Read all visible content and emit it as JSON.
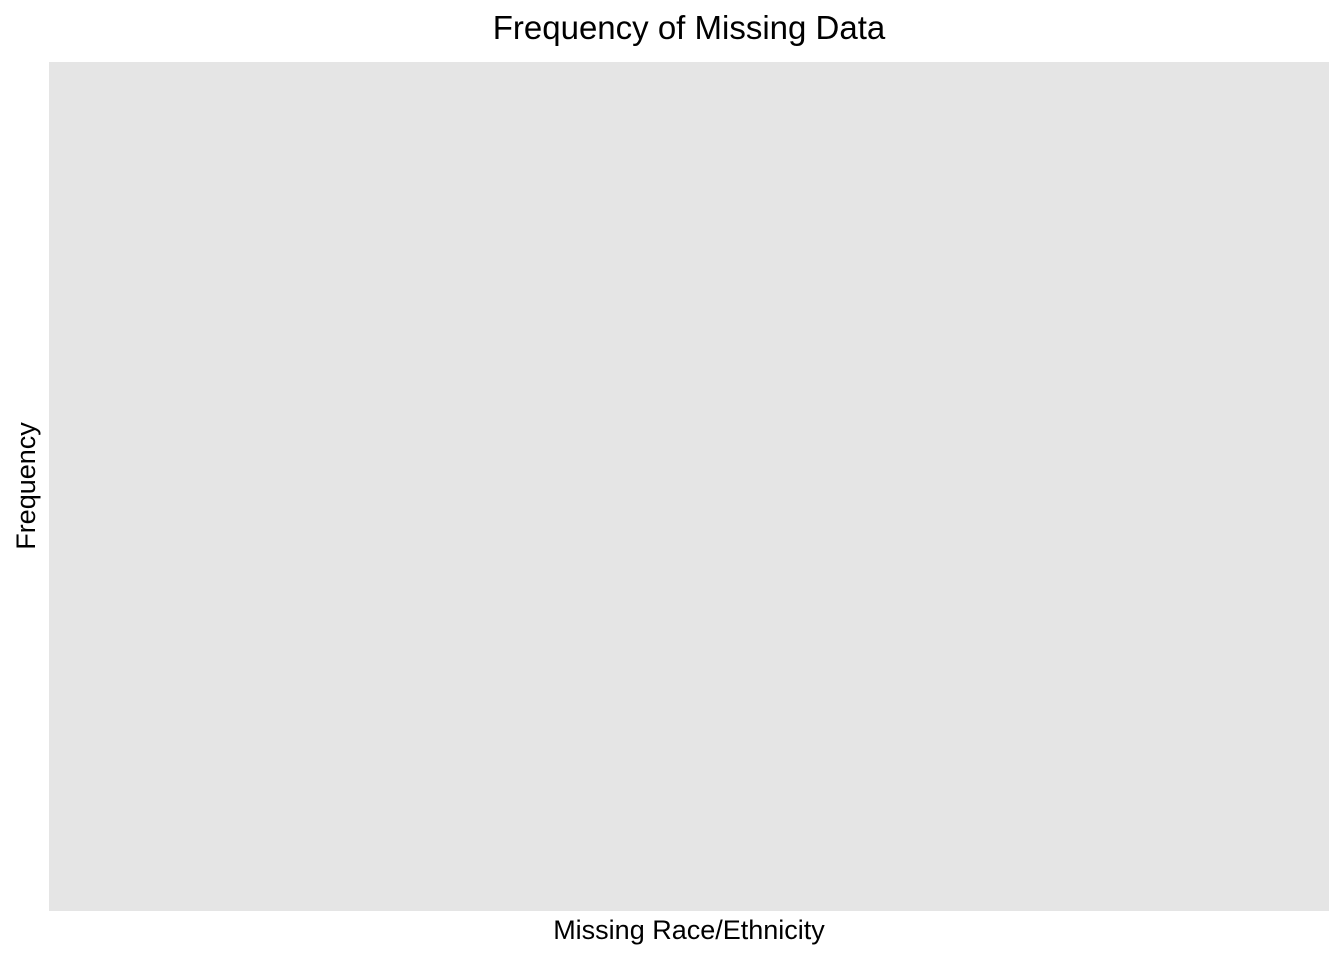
{
  "chart_data": {
    "type": "bar",
    "title": "Frequency of Missing Data",
    "xlabel": "Missing Race/Ethnicity",
    "ylabel": "Frequency",
    "categories": [],
    "values": [],
    "grid": false,
    "legend": "none",
    "colors": {
      "panel_background": "#e5e5e5",
      "page_background": "#ffffff",
      "text": "#000000"
    }
  }
}
